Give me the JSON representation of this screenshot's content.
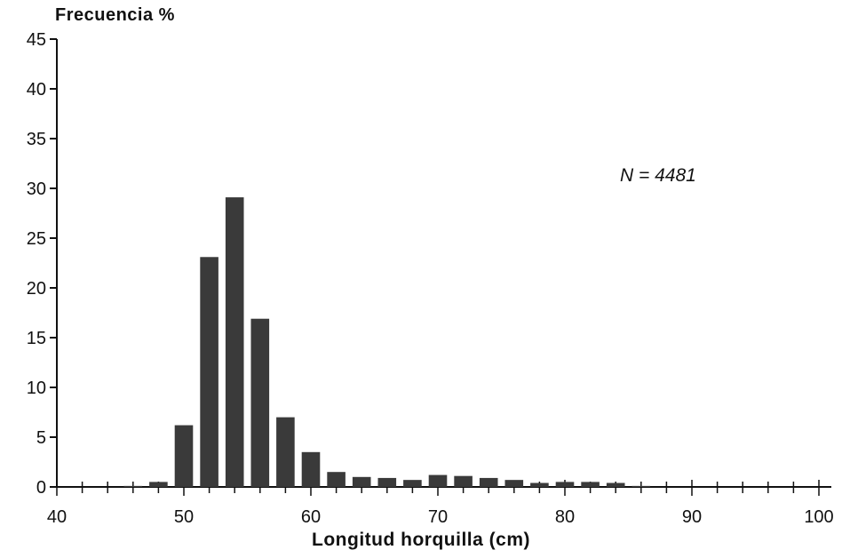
{
  "chart_data": {
    "type": "bar",
    "ylabel": "Frecuencia %",
    "xlabel": "Longitud horquilla (cm)",
    "annotation": "N = 4481",
    "xlim": [
      40,
      100
    ],
    "ylim": [
      0,
      45
    ],
    "x_ticks": [
      40,
      50,
      60,
      70,
      80,
      90,
      100
    ],
    "y_ticks": [
      0,
      5,
      10,
      15,
      20,
      25,
      30,
      35,
      40,
      45
    ],
    "bin_width": 2,
    "bar_color": "#3a3a3a",
    "x": [
      46,
      48,
      50,
      52,
      54,
      56,
      58,
      60,
      62,
      64,
      66,
      68,
      70,
      72,
      74,
      76,
      78,
      80,
      82,
      84,
      86
    ],
    "values": [
      0.1,
      0.5,
      6.2,
      23.1,
      29.1,
      16.9,
      7.0,
      3.5,
      1.5,
      1.0,
      0.9,
      0.7,
      1.2,
      1.1,
      0.9,
      0.7,
      0.4,
      0.5,
      0.5,
      0.4,
      0.1
    ]
  }
}
